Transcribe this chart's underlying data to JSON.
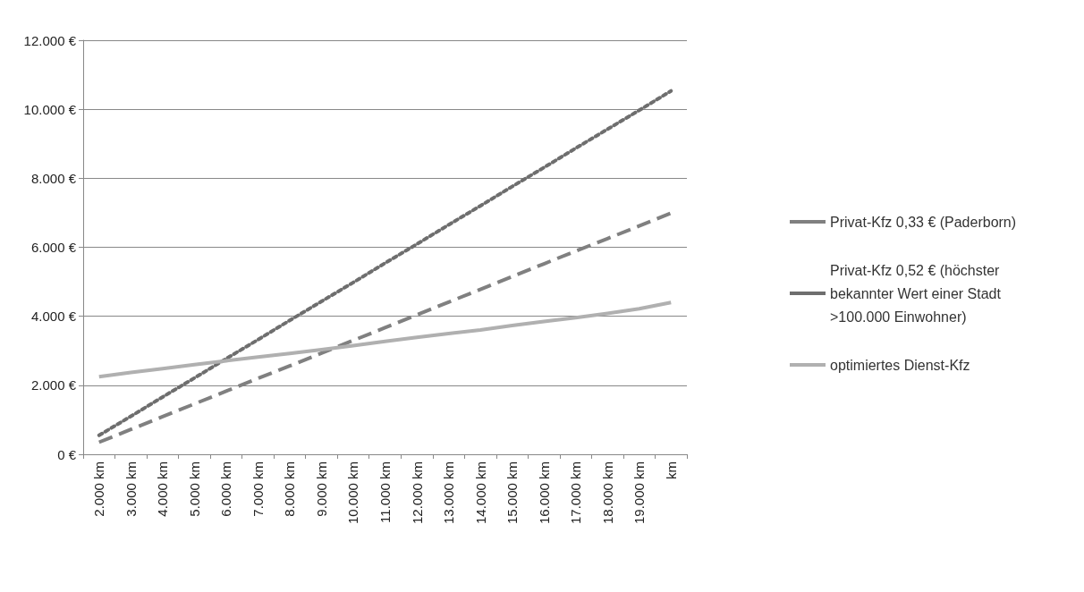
{
  "chart_data": {
    "type": "line",
    "categories": [
      "2.000 km",
      "3.000 km",
      "4.000 km",
      "5.000 km",
      "6.000 km",
      "7.000 km",
      "8.000 km",
      "9.000 km",
      "10.000 km",
      "11.000 km",
      "12.000 km",
      "13.000 km",
      "14.000 km",
      "15.000 km",
      "16.000 km",
      "17.000 km",
      "18.000 km",
      "19.000 km",
      "km"
    ],
    "series": [
      {
        "name": "Privat-Kfz 0,33 € (Paderborn)",
        "color": "#808080",
        "line_style": "dashed",
        "values": [
          350,
          720,
          1090,
          1460,
          1830,
          2200,
          2560,
          2930,
          3300,
          3670,
          4040,
          4410,
          4780,
          5150,
          5520,
          5890,
          6250,
          6620,
          6990
        ]
      },
      {
        "name": "Privat-Kfz 0,52 € (höchster bekannter Wert einer Stadt >100.000 Einwohner)",
        "color": "#6e6e6e",
        "line_style": "dotted",
        "values": [
          550,
          1100,
          1660,
          2210,
          2770,
          3320,
          3880,
          4430,
          4980,
          5540,
          6090,
          6650,
          7200,
          7760,
          8310,
          8870,
          9420,
          9970,
          10530
        ]
      },
      {
        "name": "optimiertes Dienst-Kfz",
        "color": "#b0b0b0",
        "line_style": "solid",
        "values": [
          2250,
          2370,
          2480,
          2600,
          2710,
          2820,
          2920,
          3030,
          3150,
          3270,
          3390,
          3500,
          3600,
          3730,
          3850,
          3960,
          4080,
          4220,
          4400
        ]
      }
    ],
    "ylim": [
      0,
      12000
    ],
    "yticks": [
      {
        "value": 0,
        "label": "0 €"
      },
      {
        "value": 2000,
        "label": "2.000 €"
      },
      {
        "value": 4000,
        "label": "4.000 €"
      },
      {
        "value": 6000,
        "label": "6.000 €"
      },
      {
        "value": 8000,
        "label": "8.000 €"
      },
      {
        "value": 10000,
        "label": "10.000 €"
      },
      {
        "value": 12000,
        "label": "12.000 €"
      }
    ],
    "grid": "y",
    "legend": "right",
    "marker": "none"
  }
}
